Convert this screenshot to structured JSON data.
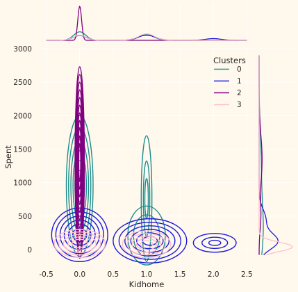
{
  "chart_data": {
    "type": "kde-joint",
    "xlabel": "Kidhome",
    "ylabel": "Spent",
    "xlim": [
      -0.6,
      2.6
    ],
    "ylim": [
      -250,
      3000
    ],
    "xticks": [
      "-0.5",
      "0.0",
      "0.5",
      "1.0",
      "1.5",
      "2.0",
      "2.5"
    ],
    "xtick_values": [
      -0.5,
      0,
      0.5,
      1,
      1.5,
      2,
      2.5
    ],
    "yticks": [
      "0",
      "500",
      "1000",
      "1500",
      "2000",
      "2500",
      "3000"
    ],
    "ytick_values": [
      0,
      500,
      1000,
      1500,
      2000,
      2500,
      3000
    ],
    "grid": true,
    "legend": {
      "title": "Clusters",
      "placement": "top-right",
      "entries": [
        {
          "label": "0",
          "color": "#1A8C8C"
        },
        {
          "label": "1",
          "color": "#1A1ADB"
        },
        {
          "label": "2",
          "color": "#800080"
        },
        {
          "label": "3",
          "color": "#FFC0CB"
        }
      ]
    },
    "series": [
      {
        "name": "0",
        "color": "#1A8C8C",
        "blobs": [
          {
            "cx": 0.0,
            "cy": 950,
            "sx": 0.2,
            "sy": 1050,
            "levels": [
              1,
              0.83,
              0.66,
              0.5,
              0.36,
              0.22
            ]
          },
          {
            "cx": 1.0,
            "cy": 760,
            "sx": 0.08,
            "sy": 940,
            "levels": [
              1,
              0.6,
              0.32
            ]
          },
          {
            "cx": 1.0,
            "cy": 210,
            "sx": 0.28,
            "sy": 440,
            "levels": [
              1,
              0.7
            ]
          }
        ]
      },
      {
        "name": "1",
        "color": "#1A1ADB",
        "blobs": [
          {
            "cx": 0.0,
            "cy": 220,
            "sx": 0.42,
            "sy": 400,
            "levels": [
              1,
              0.85,
              0.7,
              0.55,
              0.4,
              0.25
            ]
          },
          {
            "cx": 1.05,
            "cy": 130,
            "sx": 0.55,
            "sy": 330,
            "levels": [
              1,
              0.84,
              0.68,
              0.52,
              0.36,
              0.2
            ]
          },
          {
            "cx": 2.02,
            "cy": 100,
            "sx": 0.32,
            "sy": 140,
            "levels": [
              1,
              0.6,
              0.28
            ]
          }
        ]
      },
      {
        "name": "2",
        "color": "#800080",
        "blobs": [
          {
            "cx": 0.0,
            "cy": 1300,
            "sx": 0.07,
            "sy": 1430,
            "levels": [
              1,
              0.92,
              0.84,
              0.76,
              0.68,
              0.6,
              0.52,
              0.44,
              0.36,
              0.28,
              0.2
            ]
          }
        ]
      },
      {
        "name": "3",
        "color": "#FFC0CB",
        "blobs": [
          {
            "cx": 0.0,
            "cy": 90,
            "sx": 0.38,
            "sy": 210,
            "levels": [
              1,
              0.82,
              0.64,
              0.46,
              0.3
            ]
          },
          {
            "cx": 1.0,
            "cy": 80,
            "sx": 0.36,
            "sy": 200,
            "levels": [
              1,
              0.8,
              0.6,
              0.42,
              0.26
            ]
          }
        ]
      }
    ],
    "marginal_x": [
      {
        "name": "0",
        "color": "#1A8C8C",
        "peaks": [
          {
            "mu": 0.0,
            "sd": 0.09,
            "h": 0.25
          },
          {
            "mu": 1.0,
            "sd": 0.11,
            "h": 0.17
          }
        ]
      },
      {
        "name": "1",
        "color": "#1A1ADB",
        "peaks": [
          {
            "mu": 0.0,
            "sd": 0.1,
            "h": 0.14
          },
          {
            "mu": 1.0,
            "sd": 0.13,
            "h": 0.15
          },
          {
            "mu": 2.0,
            "sd": 0.12,
            "h": 0.05
          }
        ]
      },
      {
        "name": "2",
        "color": "#800080",
        "peaks": [
          {
            "mu": 0.0,
            "sd": 0.028,
            "h": 1.0
          }
        ]
      },
      {
        "name": "3",
        "color": "#FFC0CB",
        "peaks": [
          {
            "mu": 0.0,
            "sd": 0.1,
            "h": 0.15
          },
          {
            "mu": 1.0,
            "sd": 0.12,
            "h": 0.19
          }
        ]
      }
    ],
    "marginal_y": [
      {
        "name": "0",
        "color": "#1A8C8C",
        "peaks": [
          {
            "mu": 300,
            "sd": 420,
            "h": 0.12
          },
          {
            "mu": 1300,
            "sd": 450,
            "h": 0.06
          }
        ]
      },
      {
        "name": "1",
        "color": "#1A1ADB",
        "peaks": [
          {
            "mu": 120,
            "sd": 120,
            "h": 0.55
          },
          {
            "mu": 450,
            "sd": 150,
            "h": 0.2
          }
        ]
      },
      {
        "name": "2",
        "color": "#800080",
        "peaks": [
          {
            "mu": 1350,
            "sd": 350,
            "h": 0.09
          },
          {
            "mu": 500,
            "sd": 200,
            "h": 0.05
          }
        ]
      },
      {
        "name": "3",
        "color": "#FFC0CB",
        "peaks": [
          {
            "mu": 40,
            "sd": 70,
            "h": 1.0
          }
        ]
      }
    ]
  }
}
